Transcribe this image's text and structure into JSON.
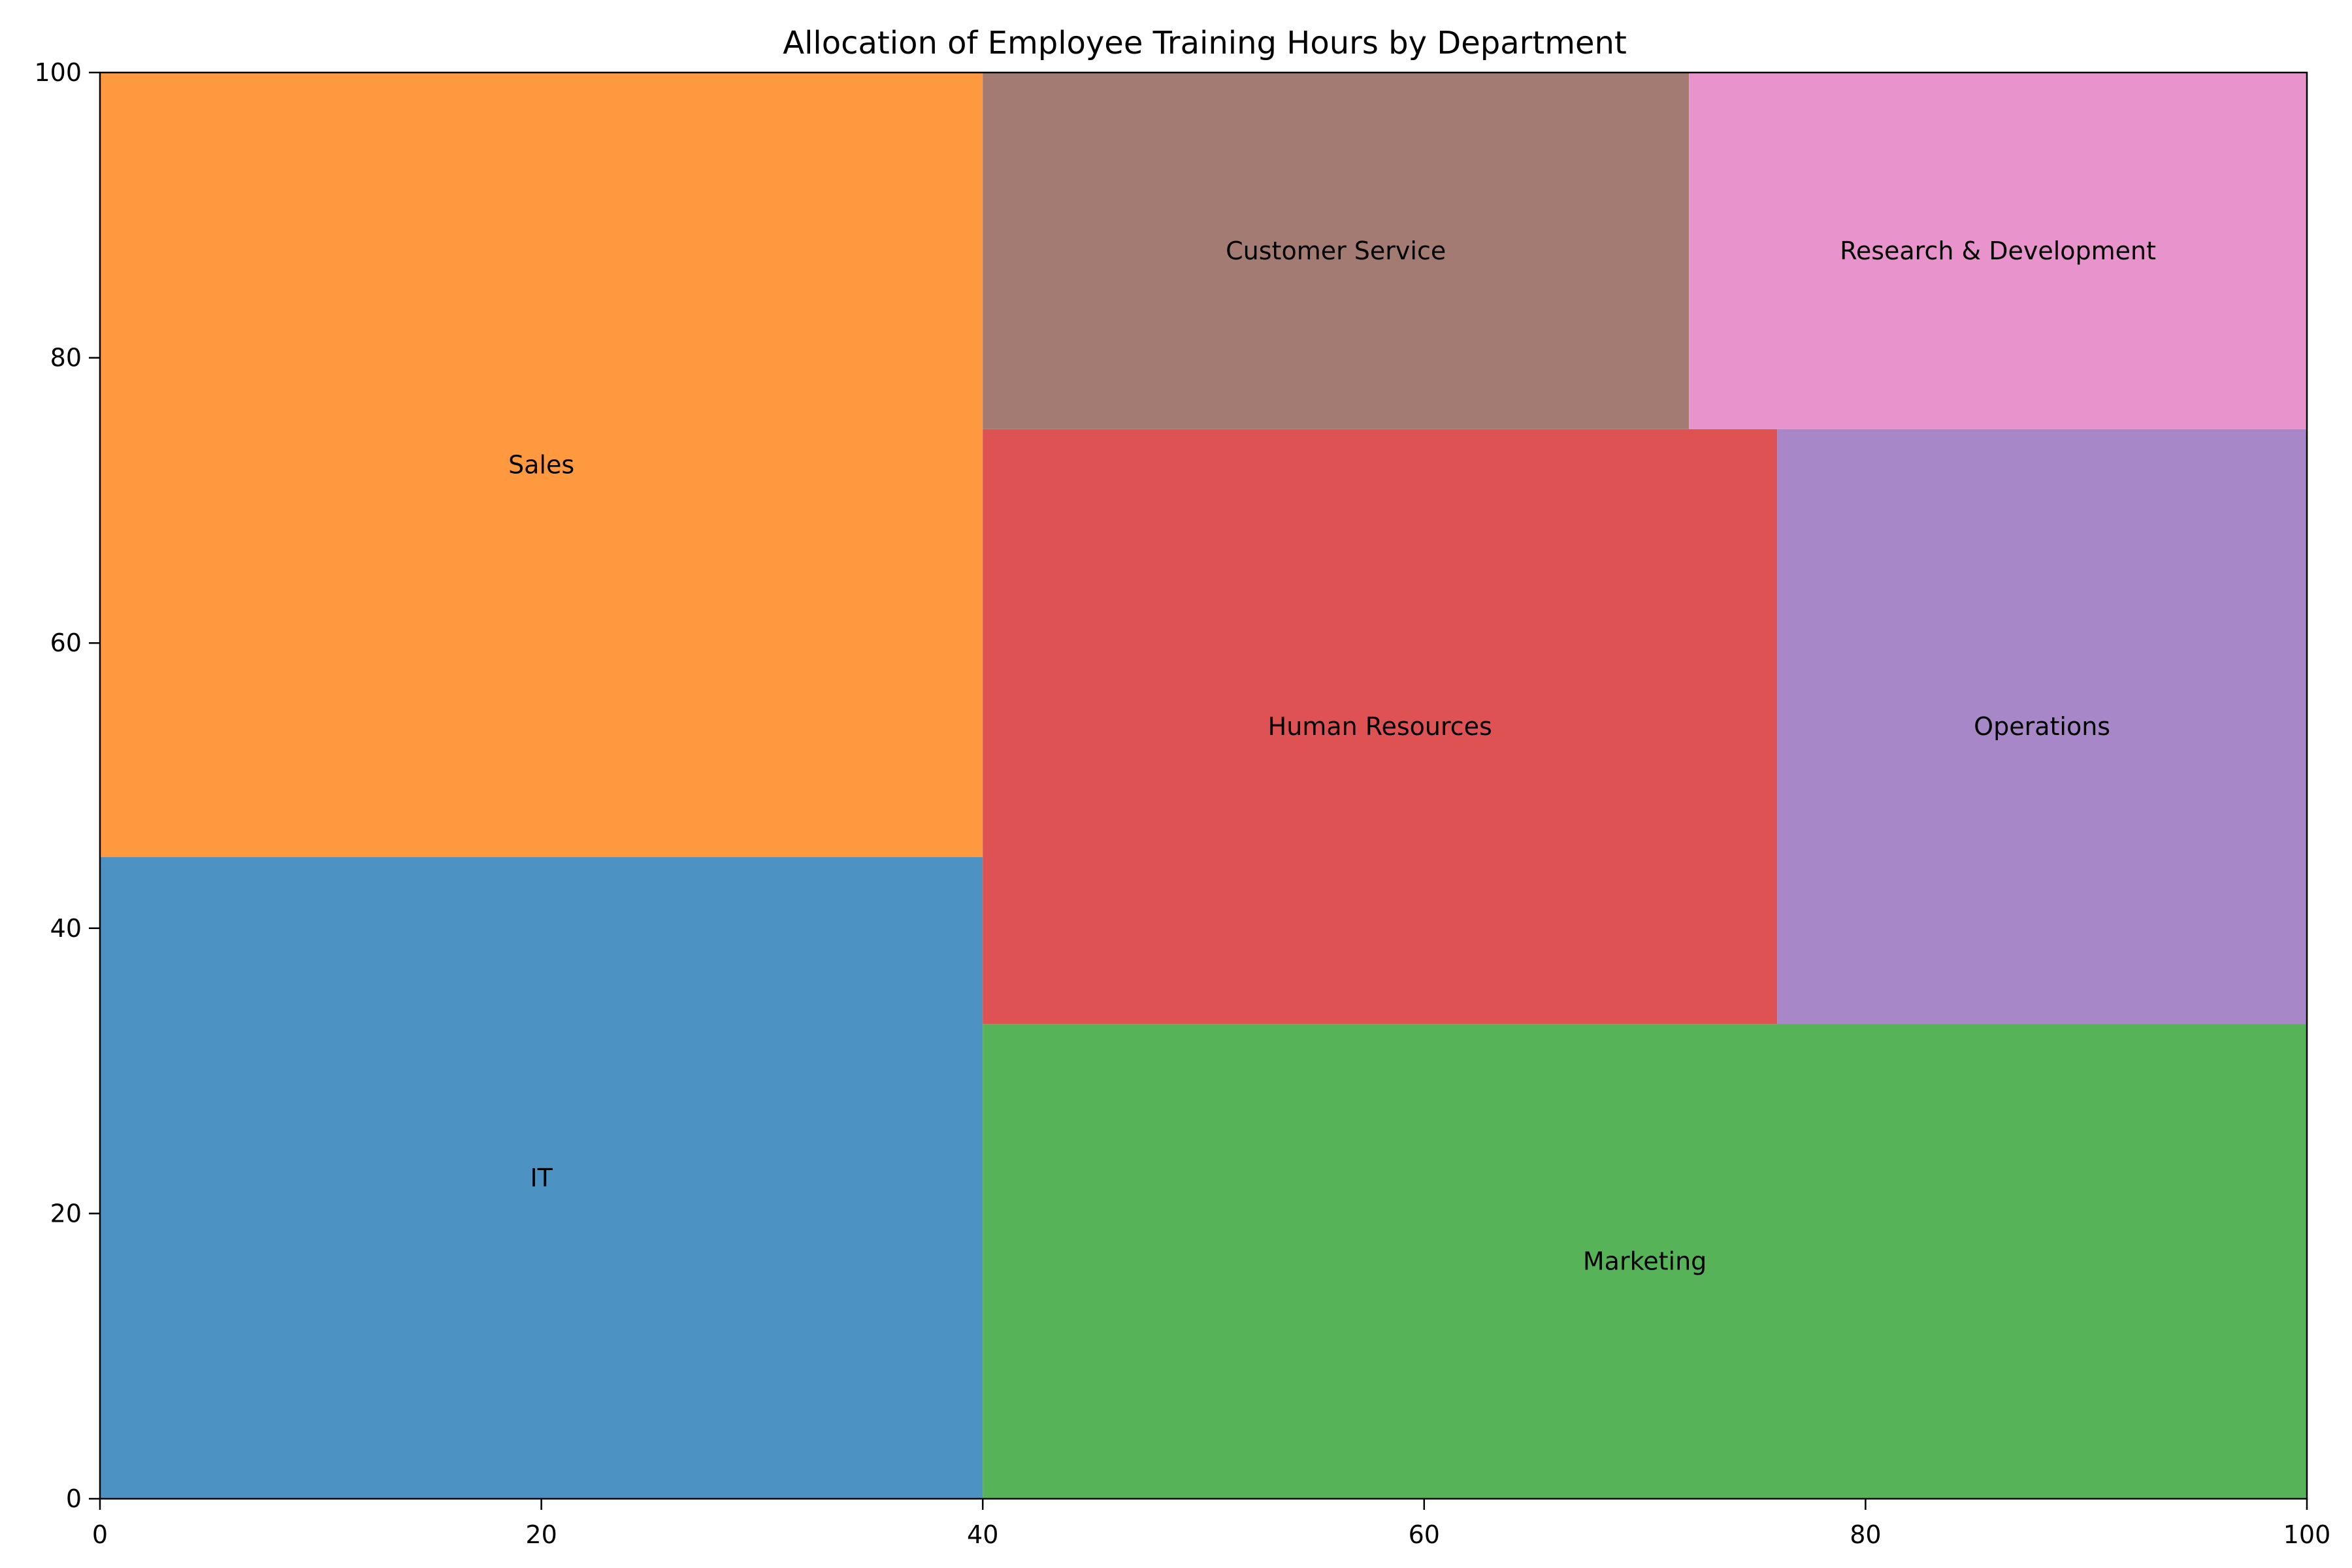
{
  "chart_data": {
    "type": "treemap",
    "title": "Allocation of Employee Training Hours by Department",
    "xlabel": "",
    "ylabel": "",
    "xlim": [
      0,
      100
    ],
    "ylim": [
      0,
      100
    ],
    "x_ticks": [
      "0",
      "20",
      "40",
      "60",
      "80",
      "100"
    ],
    "y_ticks": [
      "0",
      "20",
      "40",
      "60",
      "80",
      "100"
    ],
    "grid": false,
    "cells": [
      {
        "label": "IT",
        "x0": 0,
        "x1": 40,
        "y0": 0,
        "y1": 45,
        "color": "#4c93c3"
      },
      {
        "label": "Sales",
        "x0": 0,
        "x1": 40,
        "y0": 45,
        "y1": 100,
        "color": "#ff9940"
      },
      {
        "label": "Marketing",
        "x0": 40,
        "x1": 100,
        "y0": 0,
        "y1": 33.3,
        "color": "#57b357"
      },
      {
        "label": "Human Resources",
        "x0": 40,
        "x1": 76,
        "y0": 33.3,
        "y1": 75,
        "color": "#de5253"
      },
      {
        "label": "Operations",
        "x0": 76,
        "x1": 100,
        "y0": 33.3,
        "y1": 75,
        "color": "#a887c8"
      },
      {
        "label": "Customer Service",
        "x0": 40,
        "x1": 72,
        "y0": 75,
        "y1": 100,
        "color": "#a37b72"
      },
      {
        "label": "Research & Development",
        "x0": 72,
        "x1": 100,
        "y0": 75,
        "y1": 100,
        "color": "#e993cd"
      }
    ]
  }
}
